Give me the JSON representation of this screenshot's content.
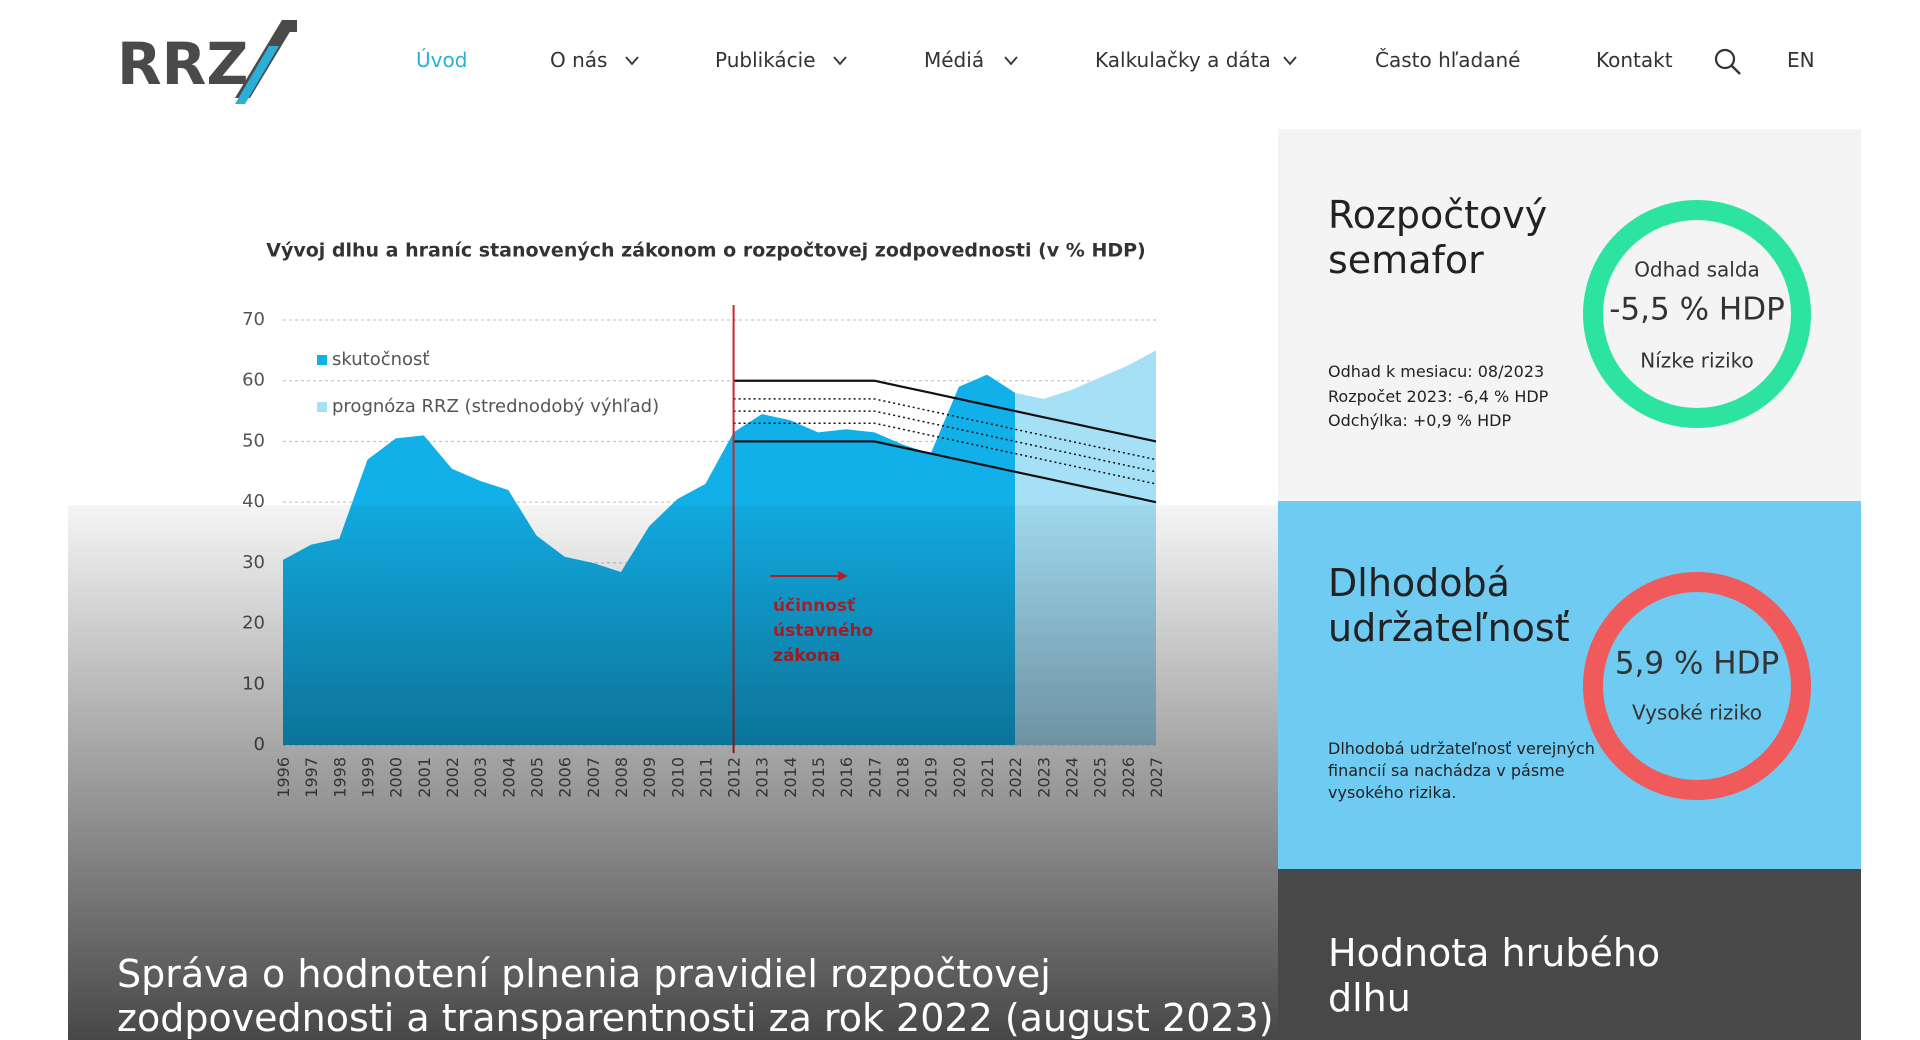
{
  "header": {
    "logo": "RRZ",
    "nav": [
      "Úvod",
      "O nás",
      "Publikácie",
      "Médiá",
      "Kalkulačky a dáta",
      "Často hľadané",
      "Kontakt"
    ],
    "active": 0,
    "lang": "EN"
  },
  "hero": {
    "title_lines": [
      "Správa o hodnotení plnenia pravidiel rozpočtovej",
      "zodpovednosti a transparentnosti za rok 2022 (august 2023)"
    ]
  },
  "chart_data": {
    "type": "area",
    "title": "Vývoj dlhu a hraníc stanovených zákonom o rozpočtovej zodpovednosti (v % HDP)",
    "categories": [
      "1996",
      "1997",
      "1998",
      "1999",
      "2000",
      "2001",
      "2002",
      "2003",
      "2004",
      "2005",
      "2006",
      "2007",
      "2008",
      "2009",
      "2010",
      "2011",
      "2012",
      "2013",
      "2014",
      "2015",
      "2016",
      "2017",
      "2018",
      "2019",
      "2020",
      "2021",
      "2022",
      "2023",
      "2024",
      "2025",
      "2026",
      "2027"
    ],
    "series": [
      {
        "name": "skutočnosť",
        "color": "#12b0e8",
        "values": [
          30.5,
          33,
          34,
          47,
          50.5,
          51,
          45.5,
          43.5,
          42,
          34.5,
          31,
          30,
          28.5,
          36,
          40.5,
          43,
          51.5,
          54.5,
          53.5,
          51.5,
          52,
          51.5,
          49.5,
          48,
          59,
          61,
          58,
          null,
          null,
          null,
          null,
          null
        ]
      },
      {
        "name": "prognóza RRZ (strednodobý výhľad)",
        "color": "#a6e0f7",
        "values": [
          null,
          null,
          null,
          null,
          null,
          null,
          null,
          null,
          null,
          null,
          null,
          null,
          null,
          null,
          null,
          null,
          null,
          null,
          null,
          null,
          null,
          null,
          null,
          null,
          null,
          null,
          58,
          57,
          58.5,
          60.5,
          62.5,
          65
        ]
      },
      {
        "type": "line",
        "color": "#111111",
        "dash": false,
        "values": [
          null,
          null,
          null,
          null,
          null,
          null,
          null,
          null,
          null,
          null,
          null,
          null,
          null,
          null,
          null,
          null,
          60,
          60,
          60,
          60,
          60,
          60,
          59,
          58,
          57,
          56,
          55,
          54,
          53,
          52,
          51,
          50
        ]
      },
      {
        "type": "line",
        "color": "#111111",
        "dash": true,
        "values": [
          null,
          null,
          null,
          null,
          null,
          null,
          null,
          null,
          null,
          null,
          null,
          null,
          null,
          null,
          null,
          null,
          57,
          57,
          57,
          57,
          57,
          57,
          56,
          55,
          54,
          53,
          52,
          51,
          50,
          49,
          48,
          47
        ]
      },
      {
        "type": "line",
        "color": "#111111",
        "dash": true,
        "values": [
          null,
          null,
          null,
          null,
          null,
          null,
          null,
          null,
          null,
          null,
          null,
          null,
          null,
          null,
          null,
          null,
          55,
          55,
          55,
          55,
          55,
          55,
          54,
          53,
          52,
          51,
          50,
          49,
          48,
          47,
          46,
          45
        ]
      },
      {
        "type": "line",
        "color": "#111111",
        "dash": true,
        "values": [
          null,
          null,
          null,
          null,
          null,
          null,
          null,
          null,
          null,
          null,
          null,
          null,
          null,
          null,
          null,
          null,
          53,
          53,
          53,
          53,
          53,
          53,
          52,
          51,
          50,
          49,
          48,
          47,
          46,
          45,
          44,
          43
        ]
      },
      {
        "type": "line",
        "color": "#111111",
        "dash": false,
        "values": [
          null,
          null,
          null,
          null,
          null,
          null,
          null,
          null,
          null,
          null,
          null,
          null,
          null,
          null,
          null,
          null,
          50,
          50,
          50,
          50,
          50,
          50,
          49,
          48,
          47,
          46,
          45,
          44,
          43,
          42,
          41,
          40
        ]
      }
    ],
    "ylim": [
      0,
      70
    ],
    "yticks": [
      0,
      10,
      20,
      30,
      40,
      50,
      60,
      70
    ],
    "grid": true,
    "legend": "top-left",
    "marker": {
      "category": "2012",
      "color": "#c9252c",
      "annotation_lines": [
        "účinnosť",
        "ústavného",
        "zákona"
      ]
    }
  },
  "panels": [
    {
      "title": "Rozpočtový semafor",
      "ring_color": "#2de3a0",
      "ring_lines": [
        "Odhad salda",
        "-5,5 % HDP",
        "Nízke riziko"
      ],
      "notes": [
        "Odhad k mesiacu: 08/2023",
        "Rozpočet 2023: -6,4 % HDP",
        "Odchýlka: +0,9 % HDP"
      ]
    },
    {
      "title": "Dlhodobá udržateľnosť",
      "ring_color": "#f05a5a",
      "ring_lines": [
        "5,9 % HDP",
        "Vysoké riziko"
      ],
      "notes": [
        "Dlhodobá udržateľnosť verejných financií sa nachádza v pásme vysokého rizika."
      ]
    },
    {
      "title": "Hodnota hrubého dlhu"
    }
  ]
}
